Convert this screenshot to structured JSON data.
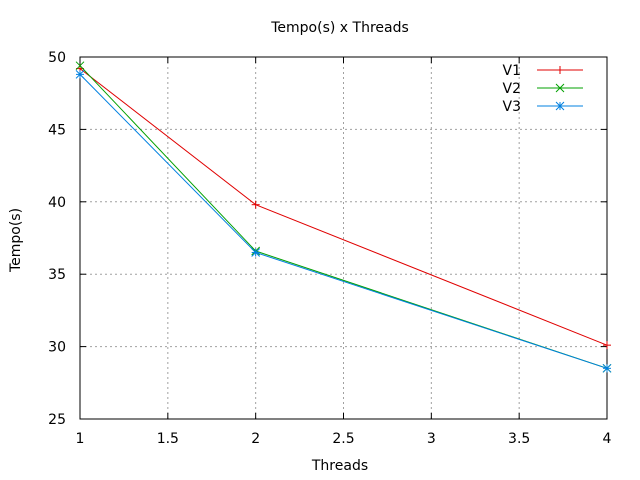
{
  "chart_data": {
    "type": "line",
    "title": "Tempo(s) x Threads",
    "xlabel": "Threads",
    "ylabel": "Tempo(s)",
    "xlim": [
      1,
      4
    ],
    "ylim": [
      25,
      50
    ],
    "xticks": [
      1,
      1.5,
      2,
      2.5,
      3,
      3.5,
      4
    ],
    "xtick_labels": [
      "1",
      "1.5",
      "2",
      "2.5",
      "3",
      "3.5",
      "4"
    ],
    "yticks": [
      25,
      30,
      35,
      40,
      45,
      50
    ],
    "ytick_labels": [
      "25",
      "30",
      "35",
      "40",
      "45",
      "50"
    ],
    "grid": true,
    "legend_position": "top-right",
    "x": [
      1,
      2,
      4
    ],
    "series": [
      {
        "name": "V1",
        "values": [
          49.2,
          39.8,
          30.1
        ],
        "color": "#e00000",
        "marker": "plus"
      },
      {
        "name": "V2",
        "values": [
          49.4,
          36.6,
          28.5
        ],
        "color": "#00a000",
        "marker": "cross"
      },
      {
        "name": "V3",
        "values": [
          48.8,
          36.5,
          28.5
        ],
        "color": "#0080e0",
        "marker": "star"
      }
    ]
  }
}
